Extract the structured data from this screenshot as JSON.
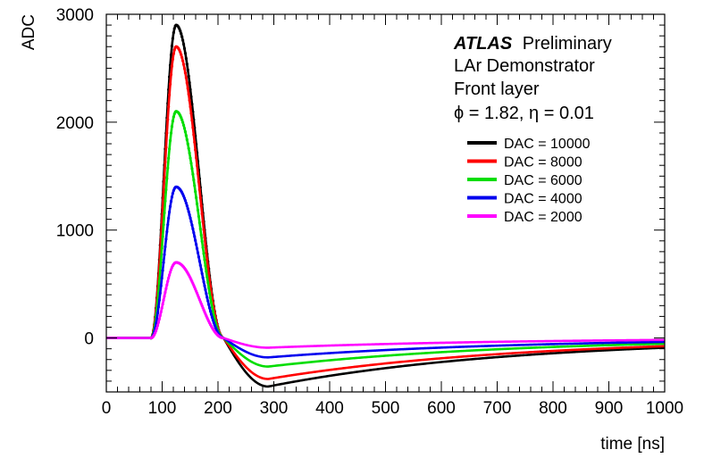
{
  "chart_data": {
    "type": "line",
    "xlabel": "time [ns]",
    "ylabel": "ADC",
    "xlim": [
      0,
      1000
    ],
    "ylim": [
      -500,
      3000
    ],
    "x_ticks": [
      0,
      100,
      200,
      300,
      400,
      500,
      600,
      700,
      800,
      900,
      1000
    ],
    "x_tick_labels": [
      "0",
      "100",
      "200",
      "300",
      "400",
      "500",
      "600",
      "700",
      "800",
      "900",
      "1000"
    ],
    "y_ticks": [
      0,
      1000,
      2000,
      3000
    ],
    "y_tick_labels": [
      "0",
      "1000",
      "2000",
      "3000"
    ],
    "grid": false,
    "legend_position": "top-right",
    "annotations": {
      "atlas": "ATLAS",
      "preliminary": "Preliminary",
      "line2": "LAr Demonstrator",
      "line3": "Front layer",
      "line4": "ϕ = 1.82, η = 0.01"
    },
    "pulse_shape": {
      "onset_ns": 80,
      "peak_ns": 125,
      "zero_crossing_ns": 210,
      "undershoot_min_ns": 290,
      "undershoot_ratio": 0.155,
      "tail_recovery_at_1000ns": 0.2
    },
    "series": [
      {
        "name": "DAC = 10000",
        "color": "#000000",
        "peak": 2900,
        "undershoot": -450,
        "value_at_1000ns": -90
      },
      {
        "name": "DAC = 8000",
        "color": "#ff0000",
        "peak": 2700,
        "undershoot": -380,
        "value_at_1000ns": -75
      },
      {
        "name": "DAC = 6000",
        "color": "#00dd00",
        "peak": 2100,
        "undershoot": -265,
        "value_at_1000ns": -55
      },
      {
        "name": "DAC = 4000",
        "color": "#0000ee",
        "peak": 1400,
        "undershoot": -180,
        "value_at_1000ns": -35
      },
      {
        "name": "DAC = 2000",
        "color": "#ff00ff",
        "peak": 700,
        "undershoot": -90,
        "value_at_1000ns": -20
      }
    ]
  }
}
